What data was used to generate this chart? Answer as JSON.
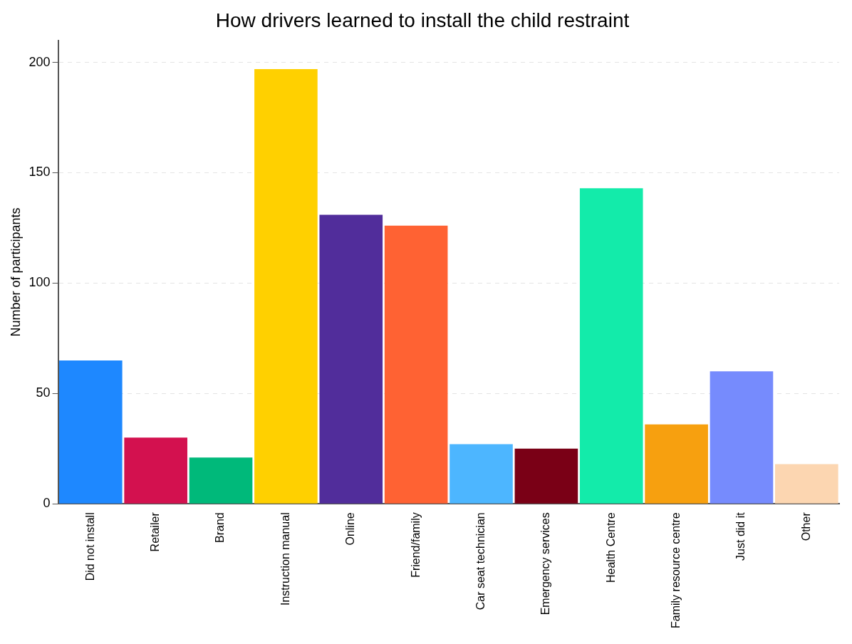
{
  "chart_data": {
    "type": "bar",
    "title": "How drivers learned to install the child restraint",
    "ylabel": "Number of participants",
    "categories": [
      "Did not install",
      "Retailer",
      "Brand",
      "Instruction manual",
      "Online",
      "Friend/family",
      "Car seat technician",
      "Emergency services",
      "Health Centre",
      "Family resource centre",
      "Just did it",
      "Other"
    ],
    "values": [
      65,
      30,
      21,
      197,
      131,
      126,
      27,
      25,
      143,
      36,
      60,
      18
    ],
    "colors": [
      "#1e88ff",
      "#d3114f",
      "#00b97a",
      "#ffd000",
      "#512d9b",
      "#ff6233",
      "#4db6ff",
      "#7a0016",
      "#13ebaa",
      "#f7a00f",
      "#768bfd",
      "#fcd6b1"
    ],
    "ylim": [
      0,
      210
    ],
    "yticks": [
      0,
      50,
      100,
      150,
      200
    ],
    "grid": "y",
    "legend": false
  }
}
